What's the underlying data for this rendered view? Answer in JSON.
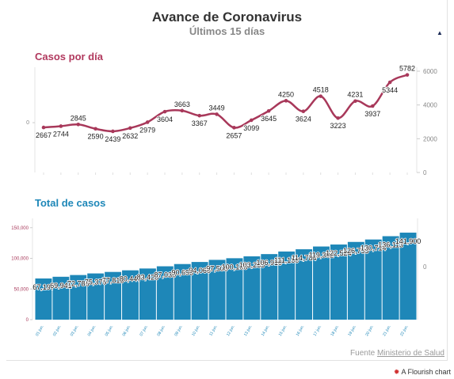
{
  "header": {
    "title": "Avance de Coronavirus",
    "subtitle": "Últimos 15 días"
  },
  "colors": {
    "daily": "#a8385a",
    "daily_heading": "#b1395e",
    "total": "#1e87b8",
    "total_heading": "#1e87b8",
    "text": "#333333",
    "axis": "#888888"
  },
  "icons": {
    "collapse": "triangle-up-icon",
    "flourish": "flourish-logo-icon"
  },
  "footer": {
    "source_prefix": "Fuente",
    "source_link": "Ministerio de Salud",
    "flourish": "A Flourish chart"
  },
  "chart_data": [
    {
      "type": "line",
      "title": "Casos por día",
      "right_axis_ticks": [
        "0",
        "2000",
        "4000",
        "6000"
      ],
      "left_axis_ticks": [
        "0"
      ],
      "ylim": [
        0,
        6000
      ],
      "grid": false,
      "series": [
        {
          "values": [
            2667,
            2744,
            2845,
            2590,
            2439,
            2632,
            2979,
            3604,
            3663,
            3367,
            3449,
            2657,
            3099,
            3645,
            4250,
            3624,
            4518,
            3223,
            4231,
            3937,
            5344,
            5782
          ],
          "labels": [
            "2667",
            "2744",
            "2845",
            "2590",
            "2439",
            "2632",
            "2979",
            "3604",
            "3663",
            "3367",
            "3449",
            "2657",
            "3099",
            "3645",
            "4250",
            "3624",
            "4518",
            "3223",
            "4231",
            "3937",
            "5344",
            "5782"
          ]
        }
      ]
    },
    {
      "type": "bar",
      "title": "Total de casos",
      "categories": [
        "01 jun.",
        "02 jun.",
        "03 jun.",
        "04 jun.",
        "05 jun.",
        "06 jun.",
        "07 jun.",
        "08 jun.",
        "09 jun.",
        "10 jun.",
        "11 jun.",
        "12 jun.",
        "13 jun.",
        "14 jun.",
        "15 jun.",
        "16 jun.",
        "17 jun.",
        "18 jun.",
        "19 jun.",
        "20 jun.",
        "21 jun.",
        "22 jun."
      ],
      "left_axis_ticks": [
        "0",
        "50,000",
        "100,000",
        "150,000"
      ],
      "right_axis_ticks": [
        "0"
      ],
      "ylim": [
        0,
        160000
      ],
      "grid": false,
      "series": [
        {
          "values": [
            67197,
            69941,
            72786,
            75376,
            77815,
            80447,
            83426,
            87030,
            90693,
            94060,
            97509,
            100166,
            103265,
            106910,
            111160,
            114784,
            119302,
            122524,
            126755,
            130714,
            136113,
            141900
          ],
          "labels": [
            "67,197",
            "69,941",
            "72,786",
            "75,376",
            "77,815",
            "80,447",
            "83,426",
            "87,030",
            "90,693",
            "94,060",
            "97,509",
            "100,166",
            "103,265",
            "106,910",
            "111,160",
            "114,784",
            "119,302",
            "122,524",
            "126,755",
            "130,714",
            "136,113",
            "141,900"
          ]
        }
      ]
    }
  ]
}
